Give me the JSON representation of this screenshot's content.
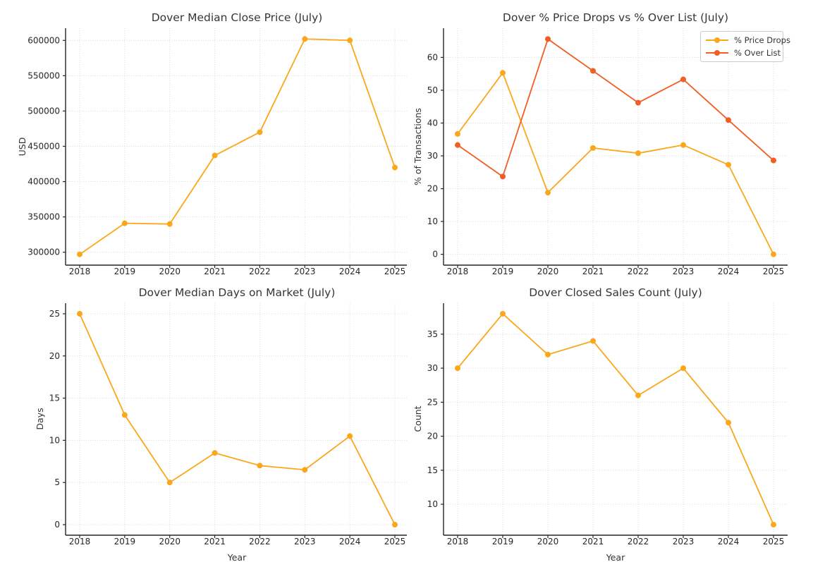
{
  "chart_data": [
    {
      "type": "line",
      "title": "Dover Median Close Price (July)",
      "xlabel": "",
      "ylabel": "USD",
      "categories": [
        "2018",
        "2019",
        "2020",
        "2021",
        "2022",
        "2023",
        "2024",
        "2025"
      ],
      "series": [
        {
          "name": "Median Close Price",
          "color": "#FBA71B",
          "values": [
            297000,
            341000,
            340000,
            437000,
            470000,
            602000,
            600000,
            420000
          ]
        }
      ],
      "yticks": [
        300000,
        350000,
        400000,
        450000,
        500000,
        550000,
        600000
      ],
      "ylim": [
        281750,
        617250
      ],
      "grid": true,
      "legend": false
    },
    {
      "type": "line",
      "title": "Dover % Price Drops vs % Over List (July)",
      "xlabel": "",
      "ylabel": "% of Transactions",
      "categories": [
        "2018",
        "2019",
        "2020",
        "2021",
        "2022",
        "2023",
        "2024",
        "2025"
      ],
      "series": [
        {
          "name": "% Price Drops",
          "color": "#FBA71B",
          "values": [
            36.7,
            55.3,
            18.8,
            32.4,
            30.8,
            33.3,
            27.3,
            0.0
          ]
        },
        {
          "name": "% Over List",
          "color": "#F05E23",
          "values": [
            33.3,
            23.7,
            65.6,
            55.9,
            46.2,
            53.3,
            40.9,
            28.6
          ]
        }
      ],
      "yticks": [
        0,
        10,
        20,
        30,
        40,
        50,
        60
      ],
      "ylim": [
        -3.3,
        68.9
      ],
      "grid": true,
      "legend": true,
      "legend_position": "top-right"
    },
    {
      "type": "line",
      "title": "Dover Median Days on Market (July)",
      "xlabel": "Year",
      "ylabel": "Days",
      "categories": [
        "2018",
        "2019",
        "2020",
        "2021",
        "2022",
        "2023",
        "2024",
        "2025"
      ],
      "series": [
        {
          "name": "Median Days on Market",
          "color": "#FBA71B",
          "values": [
            25,
            13,
            5,
            8.5,
            7,
            6.5,
            10.5,
            0
          ]
        }
      ],
      "yticks": [
        0,
        5,
        10,
        15,
        20,
        25
      ],
      "ylim": [
        -1.25,
        26.25
      ],
      "grid": true,
      "legend": false
    },
    {
      "type": "line",
      "title": "Dover Closed Sales Count (July)",
      "xlabel": "Year",
      "ylabel": "Count",
      "categories": [
        "2018",
        "2019",
        "2020",
        "2021",
        "2022",
        "2023",
        "2024",
        "2025"
      ],
      "series": [
        {
          "name": "Closed Sales Count",
          "color": "#FBA71B",
          "values": [
            30,
            38,
            32,
            34,
            26,
            30,
            22,
            7
          ]
        }
      ],
      "yticks": [
        10,
        15,
        20,
        25,
        30,
        35
      ],
      "ylim": [
        5.45,
        39.55
      ],
      "grid": true,
      "legend": false
    }
  ],
  "style": {
    "background": "#ffffff",
    "grid_color": "#d6d6d6",
    "spine_color": "#262626",
    "tick_color": "#262626",
    "title_color": "#363636",
    "series_amber": "#FBA71B",
    "series_orange_red": "#F05E23"
  }
}
